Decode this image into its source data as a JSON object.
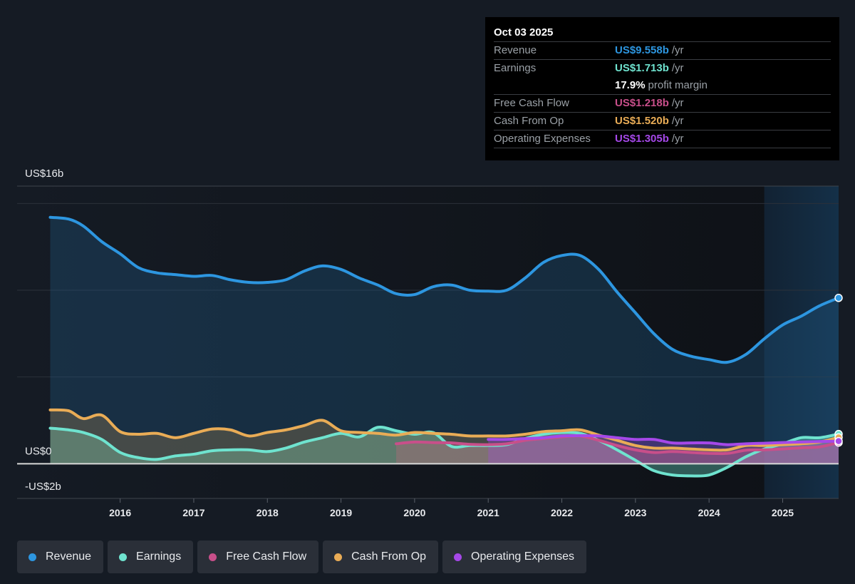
{
  "tooltip": {
    "date": "Oct 03 2025",
    "rows": [
      {
        "label": "Revenue",
        "value": "US$9.558b",
        "unit": "/yr",
        "color": "#2d96e0"
      },
      {
        "label": "Earnings",
        "value": "US$1.713b",
        "unit": "/yr",
        "color": "#6fe3cf"
      },
      {
        "label": "",
        "value": "17.9%",
        "unit": "profit margin",
        "color": "#ffffff"
      },
      {
        "label": "Free Cash Flow",
        "value": "US$1.218b",
        "unit": "/yr",
        "color": "#c84f8a"
      },
      {
        "label": "Cash From Op",
        "value": "US$1.520b",
        "unit": "/yr",
        "color": "#e9ac56"
      },
      {
        "label": "Operating Expenses",
        "value": "US$1.305b",
        "unit": "/yr",
        "color": "#a548e8"
      }
    ]
  },
  "legend": [
    {
      "label": "Revenue",
      "color": "#2d96e0"
    },
    {
      "label": "Earnings",
      "color": "#6fe3cf"
    },
    {
      "label": "Free Cash Flow",
      "color": "#c84f8a"
    },
    {
      "label": "Cash From Op",
      "color": "#e9ac56"
    },
    {
      "label": "Operating Expenses",
      "color": "#a548e8"
    }
  ],
  "chart_data": {
    "type": "line",
    "title": "",
    "xlabel": "",
    "ylabel": "",
    "y_unit": "US$ billions",
    "ylim": [
      -2,
      16
    ],
    "y_tick_labels": [
      {
        "value": 16,
        "label": "US$16b"
      },
      {
        "value": 0,
        "label": "US$0"
      },
      {
        "value": -2,
        "label": "-US$2b"
      }
    ],
    "y_gridlines": [
      0,
      5,
      10,
      15,
      16
    ],
    "xlim": [
      2014.6,
      2025.76
    ],
    "x_ticks": [
      2016,
      2017,
      2018,
      2019,
      2020,
      2021,
      2022,
      2023,
      2024,
      2025
    ],
    "forecast_shade_from": 2024.75,
    "grid": true,
    "legend_position": "bottom",
    "series": [
      {
        "name": "Revenue",
        "color": "#2d96e0",
        "x": [
          2015.05,
          2015.3,
          2015.5,
          2015.75,
          2016.0,
          2016.25,
          2016.5,
          2016.75,
          2017.0,
          2017.25,
          2017.5,
          2017.75,
          2018.0,
          2018.25,
          2018.5,
          2018.75,
          2019.0,
          2019.25,
          2019.5,
          2019.75,
          2020.0,
          2020.25,
          2020.5,
          2020.75,
          2021.0,
          2021.25,
          2021.5,
          2021.75,
          2022.0,
          2022.25,
          2022.5,
          2022.75,
          2023.0,
          2023.25,
          2023.5,
          2023.75,
          2024.0,
          2024.25,
          2024.5,
          2024.75,
          2025.0,
          2025.25,
          2025.5,
          2025.76
        ],
        "y": [
          14.2,
          14.1,
          13.7,
          12.8,
          12.1,
          11.3,
          11.0,
          10.9,
          10.8,
          10.85,
          10.6,
          10.45,
          10.45,
          10.6,
          11.1,
          11.4,
          11.2,
          10.7,
          10.3,
          9.8,
          9.75,
          10.2,
          10.3,
          10.0,
          9.95,
          10.0,
          10.7,
          11.6,
          12.0,
          12.0,
          11.2,
          9.9,
          8.7,
          7.5,
          6.6,
          6.2,
          6.0,
          5.85,
          6.3,
          7.2,
          8.0,
          8.5,
          9.1,
          9.558
        ]
      },
      {
        "name": "Earnings",
        "color": "#6fe3cf",
        "x": [
          2015.05,
          2015.3,
          2015.5,
          2015.75,
          2016.0,
          2016.25,
          2016.5,
          2016.75,
          2017.0,
          2017.25,
          2017.5,
          2017.75,
          2018.0,
          2018.25,
          2018.5,
          2018.75,
          2019.0,
          2019.25,
          2019.5,
          2019.75,
          2020.0,
          2020.25,
          2020.5,
          2020.75,
          2021.0,
          2021.25,
          2021.5,
          2021.75,
          2022.0,
          2022.25,
          2022.5,
          2022.75,
          2023.0,
          2023.25,
          2023.5,
          2023.75,
          2024.0,
          2024.25,
          2024.5,
          2024.75,
          2025.0,
          2025.25,
          2025.5,
          2025.76
        ],
        "y": [
          2.05,
          1.95,
          1.8,
          1.4,
          0.65,
          0.35,
          0.25,
          0.45,
          0.55,
          0.75,
          0.8,
          0.8,
          0.7,
          0.9,
          1.25,
          1.5,
          1.75,
          1.55,
          2.1,
          1.9,
          1.7,
          1.8,
          1.0,
          1.05,
          1.05,
          1.1,
          1.45,
          1.7,
          1.8,
          1.75,
          1.35,
          0.8,
          0.2,
          -0.4,
          -0.65,
          -0.7,
          -0.65,
          -0.2,
          0.4,
          0.85,
          1.15,
          1.5,
          1.5,
          1.713
        ]
      },
      {
        "name": "Free Cash Flow",
        "color": "#c84f8a",
        "x": [
          2019.75,
          2020.0,
          2020.25,
          2020.5,
          2020.75,
          2021.0,
          2021.25,
          2021.5,
          2021.75,
          2022.0,
          2022.25,
          2022.5,
          2022.75,
          2023.0,
          2023.25,
          2023.5,
          2023.75,
          2024.0,
          2024.25,
          2024.5,
          2024.75,
          2025.0,
          2025.25,
          2025.5,
          2025.76
        ],
        "y": [
          1.15,
          1.25,
          1.22,
          1.2,
          1.12,
          1.1,
          1.15,
          1.35,
          1.45,
          1.55,
          1.6,
          1.35,
          1.05,
          0.8,
          0.65,
          0.7,
          0.65,
          0.6,
          0.6,
          0.78,
          0.8,
          0.85,
          0.92,
          0.97,
          1.218
        ]
      },
      {
        "name": "Cash From Op",
        "color": "#e9ac56",
        "x": [
          2015.05,
          2015.3,
          2015.5,
          2015.75,
          2016.0,
          2016.25,
          2016.5,
          2016.75,
          2017.0,
          2017.25,
          2017.5,
          2017.75,
          2018.0,
          2018.25,
          2018.5,
          2018.75,
          2019.0,
          2019.25,
          2019.5,
          2019.75,
          2020.0,
          2020.25,
          2020.5,
          2020.75,
          2021.0,
          2021.25,
          2021.5,
          2021.75,
          2022.0,
          2022.25,
          2022.5,
          2022.75,
          2023.0,
          2023.25,
          2023.5,
          2023.75,
          2024.0,
          2024.25,
          2024.5,
          2024.75,
          2025.0,
          2025.25,
          2025.5,
          2025.76
        ],
        "y": [
          3.1,
          3.05,
          2.6,
          2.8,
          1.85,
          1.7,
          1.75,
          1.5,
          1.75,
          2.0,
          1.95,
          1.6,
          1.8,
          1.95,
          2.2,
          2.5,
          1.9,
          1.8,
          1.75,
          1.65,
          1.8,
          1.75,
          1.7,
          1.6,
          1.6,
          1.6,
          1.7,
          1.85,
          1.9,
          1.95,
          1.65,
          1.35,
          1.05,
          0.9,
          0.9,
          0.85,
          0.8,
          0.8,
          1.05,
          1.05,
          1.1,
          1.15,
          1.25,
          1.52
        ]
      },
      {
        "name": "Operating Expenses",
        "color": "#a548e8",
        "x": [
          2021.0,
          2021.25,
          2021.5,
          2021.75,
          2022.0,
          2022.25,
          2022.5,
          2022.75,
          2023.0,
          2023.25,
          2023.5,
          2023.75,
          2024.0,
          2024.25,
          2024.5,
          2024.75,
          2025.0,
          2025.25,
          2025.5,
          2025.76
        ],
        "y": [
          1.4,
          1.4,
          1.45,
          1.5,
          1.6,
          1.62,
          1.6,
          1.5,
          1.4,
          1.4,
          1.2,
          1.2,
          1.2,
          1.1,
          1.15,
          1.18,
          1.22,
          1.25,
          1.28,
          1.305
        ]
      }
    ]
  }
}
